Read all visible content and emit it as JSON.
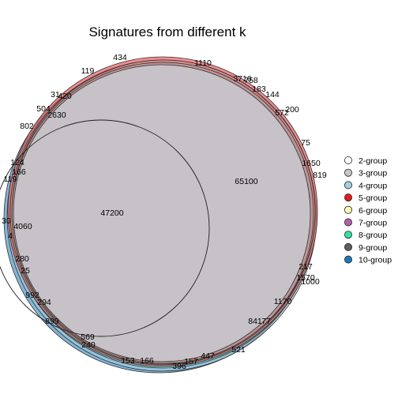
{
  "title": "Signatures from different k",
  "legend": {
    "placement": "right",
    "items": [
      {
        "label": "2-group",
        "color": "#FFFFFF"
      },
      {
        "label": "3-group",
        "color": "#C7C7C7"
      },
      {
        "label": "4-group",
        "color": "#A6CEE3"
      },
      {
        "label": "5-group",
        "color": "#E31A1C"
      },
      {
        "label": "6-group",
        "color": "#FFFFB3"
      },
      {
        "label": "7-group",
        "color": "#B15FA8"
      },
      {
        "label": "8-group",
        "color": "#33E0A7"
      },
      {
        "label": "9-group",
        "color": "#5E5E5E"
      },
      {
        "label": "10-group",
        "color": "#1F78B4"
      }
    ]
  },
  "region_labels": [
    "434",
    "1110",
    "119",
    "3716",
    "758",
    "183",
    "144",
    "31",
    "420",
    "504",
    "572",
    "200",
    "2630",
    "802",
    "75",
    "1650",
    "65100",
    "124",
    "819",
    "166",
    "119",
    "47200",
    "30",
    "4060",
    "4",
    "280",
    "217",
    "25",
    "1570",
    "1000",
    "992",
    "294",
    "1170",
    "899",
    "841",
    "77",
    "569",
    "240",
    "521",
    "447",
    "157",
    "153",
    "166",
    "396"
  ]
}
